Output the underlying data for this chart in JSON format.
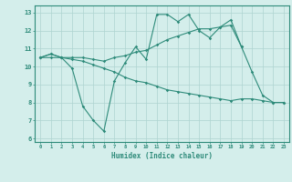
{
  "x": [
    0,
    1,
    2,
    3,
    4,
    5,
    6,
    7,
    8,
    9,
    10,
    11,
    12,
    13,
    14,
    15,
    16,
    17,
    18,
    19,
    20,
    21,
    22,
    23
  ],
  "line2": [
    10.5,
    10.7,
    10.5,
    9.9,
    7.8,
    7.0,
    6.4,
    9.2,
    10.2,
    11.1,
    10.4,
    12.9,
    12.9,
    12.5,
    12.9,
    12.0,
    11.6,
    12.2,
    12.6,
    11.1,
    9.7,
    8.4,
    8.0,
    8.0
  ],
  "line3": [
    10.5,
    10.7,
    10.5,
    10.5,
    10.5,
    10.4,
    10.3,
    10.5,
    10.6,
    10.8,
    10.9,
    11.2,
    11.5,
    11.7,
    11.9,
    12.1,
    12.1,
    12.2,
    12.3,
    11.1,
    null,
    null,
    null,
    null
  ],
  "line4": [
    10.5,
    10.5,
    10.5,
    10.4,
    10.3,
    10.1,
    9.9,
    9.7,
    9.4,
    9.2,
    9.1,
    8.9,
    8.7,
    8.6,
    8.5,
    8.4,
    8.3,
    8.2,
    8.1,
    8.2,
    8.2,
    8.1,
    8.0,
    8.0
  ],
  "color": "#2e8b7a",
  "bg_color": "#d4eeeb",
  "grid_color": "#aed4d0",
  "xlabel": "Humidex (Indice chaleur)",
  "ylabel_ticks": [
    6,
    7,
    8,
    9,
    10,
    11,
    12,
    13
  ],
  "xlim": [
    -0.5,
    23.5
  ],
  "ylim": [
    5.8,
    13.4
  ]
}
